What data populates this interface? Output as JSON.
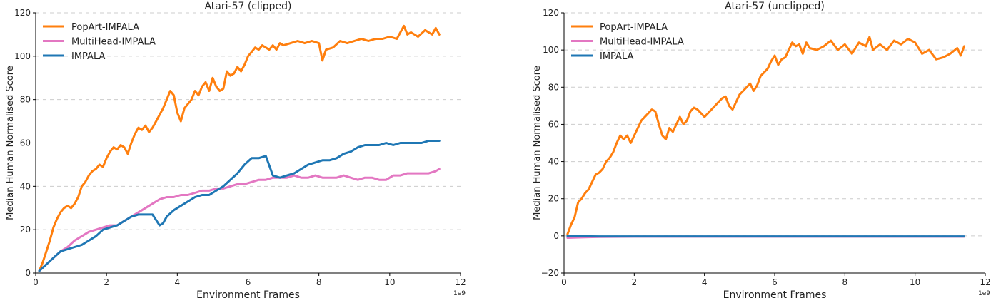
{
  "chart_data": [
    {
      "type": "line",
      "title": "Atari-57 (clipped)",
      "xlabel": "Environment Frames",
      "ylabel": "Median Human Normalised Score",
      "x_multiplier_label": "1e9",
      "xlim": [
        0,
        12
      ],
      "ylim": [
        0,
        120
      ],
      "xticks": [
        0,
        2,
        4,
        6,
        8,
        10,
        12
      ],
      "yticks": [
        0,
        20,
        40,
        60,
        80,
        100,
        120
      ],
      "grid": "horizontal-dashed",
      "legend": "top-left",
      "series": [
        {
          "name": "PopArt-IMPALA",
          "color": "#ff7f0e",
          "x": [
            0.1,
            0.2,
            0.3,
            0.4,
            0.5,
            0.6,
            0.7,
            0.8,
            0.9,
            1.0,
            1.1,
            1.2,
            1.3,
            1.4,
            1.5,
            1.6,
            1.7,
            1.8,
            1.9,
            2.0,
            2.1,
            2.2,
            2.3,
            2.4,
            2.5,
            2.6,
            2.7,
            2.8,
            2.9,
            3.0,
            3.1,
            3.2,
            3.3,
            3.4,
            3.5,
            3.6,
            3.7,
            3.8,
            3.9,
            4.0,
            4.1,
            4.2,
            4.3,
            4.4,
            4.5,
            4.6,
            4.7,
            4.8,
            4.9,
            5.0,
            5.1,
            5.2,
            5.3,
            5.4,
            5.5,
            5.6,
            5.7,
            5.8,
            5.9,
            6.0,
            6.1,
            6.2,
            6.3,
            6.4,
            6.5,
            6.6,
            6.7,
            6.8,
            6.9,
            7.0,
            7.2,
            7.4,
            7.6,
            7.8,
            8.0,
            8.1,
            8.2,
            8.4,
            8.6,
            8.8,
            9.0,
            9.2,
            9.4,
            9.6,
            9.8,
            10.0,
            10.2,
            10.4,
            10.5,
            10.6,
            10.8,
            11.0,
            11.2,
            11.3,
            11.4
          ],
          "y": [
            1,
            5,
            10,
            15,
            21,
            25,
            28,
            30,
            31,
            30,
            32,
            35,
            40,
            42,
            45,
            47,
            48,
            50,
            49,
            53,
            56,
            58,
            57,
            59,
            58,
            55,
            60,
            64,
            67,
            66,
            68,
            65,
            67,
            70,
            73,
            76,
            80,
            84,
            82,
            74,
            70,
            76,
            78,
            80,
            84,
            82,
            86,
            88,
            84,
            90,
            86,
            84,
            85,
            93,
            91,
            92,
            95,
            93,
            96,
            100,
            102,
            104,
            103,
            105,
            104,
            103,
            105,
            103,
            106,
            105,
            106,
            107,
            106,
            107,
            106,
            98,
            103,
            104,
            107,
            106,
            107,
            108,
            107,
            108,
            108,
            109,
            108,
            114,
            110,
            111,
            109,
            112,
            110,
            113,
            110
          ]
        },
        {
          "name": "MultiHead-IMPALA",
          "color": "#e377c2",
          "x": [
            0.1,
            0.3,
            0.5,
            0.7,
            0.9,
            1.1,
            1.3,
            1.5,
            1.7,
            1.9,
            2.1,
            2.3,
            2.5,
            2.7,
            2.9,
            3.1,
            3.3,
            3.5,
            3.7,
            3.9,
            4.1,
            4.3,
            4.5,
            4.7,
            4.9,
            5.1,
            5.3,
            5.5,
            5.7,
            5.9,
            6.1,
            6.3,
            6.5,
            6.7,
            6.9,
            7.1,
            7.3,
            7.5,
            7.7,
            7.9,
            8.1,
            8.3,
            8.5,
            8.7,
            8.9,
            9.1,
            9.3,
            9.5,
            9.7,
            9.9,
            10.1,
            10.3,
            10.5,
            10.7,
            10.9,
            11.1,
            11.3,
            11.4
          ],
          "y": [
            1,
            4,
            7,
            10,
            12,
            15,
            17,
            19,
            20,
            21,
            22,
            22,
            24,
            26,
            28,
            30,
            32,
            34,
            35,
            35,
            36,
            36,
            37,
            38,
            38,
            39,
            39,
            40,
            41,
            41,
            42,
            43,
            43,
            44,
            44,
            44,
            45,
            44,
            44,
            45,
            44,
            44,
            44,
            45,
            44,
            43,
            44,
            44,
            43,
            43,
            45,
            45,
            46,
            46,
            46,
            46,
            47,
            48
          ]
        },
        {
          "name": "IMPALA",
          "color": "#1f77b4",
          "x": [
            0.1,
            0.3,
            0.5,
            0.7,
            0.9,
            1.1,
            1.3,
            1.5,
            1.7,
            1.9,
            2.1,
            2.3,
            2.5,
            2.7,
            2.9,
            3.1,
            3.3,
            3.5,
            3.6,
            3.7,
            3.9,
            4.1,
            4.3,
            4.5,
            4.7,
            4.9,
            5.1,
            5.3,
            5.5,
            5.7,
            5.9,
            6.1,
            6.3,
            6.5,
            6.7,
            6.9,
            7.1,
            7.3,
            7.5,
            7.7,
            7.9,
            8.1,
            8.3,
            8.5,
            8.7,
            8.9,
            9.1,
            9.3,
            9.5,
            9.7,
            9.9,
            10.1,
            10.3,
            10.5,
            10.7,
            10.9,
            11.1,
            11.3,
            11.4
          ],
          "y": [
            1,
            4,
            7,
            10,
            11,
            12,
            13,
            15,
            17,
            20,
            21,
            22,
            24,
            26,
            27,
            27,
            27,
            22,
            23,
            26,
            29,
            31,
            33,
            35,
            36,
            36,
            38,
            40,
            43,
            46,
            50,
            53,
            53,
            54,
            45,
            44,
            45,
            46,
            48,
            50,
            51,
            52,
            52,
            53,
            55,
            56,
            58,
            59,
            59,
            59,
            60,
            59,
            60,
            60,
            60,
            60,
            61,
            61,
            61
          ]
        }
      ]
    },
    {
      "type": "line",
      "title": "Atari-57 (unclipped)",
      "xlabel": "Environment Frames",
      "ylabel": "Median Human Normalised Score",
      "x_multiplier_label": "1e9",
      "xlim": [
        0,
        12
      ],
      "ylim": [
        -20,
        120
      ],
      "xticks": [
        0,
        2,
        4,
        6,
        8,
        10,
        12
      ],
      "yticks": [
        -20,
        0,
        20,
        40,
        60,
        80,
        100,
        120
      ],
      "grid": "horizontal-dashed",
      "legend": "top-left",
      "series": [
        {
          "name": "PopArt-IMPALA",
          "color": "#ff7f0e",
          "x": [
            0.1,
            0.2,
            0.3,
            0.4,
            0.5,
            0.6,
            0.7,
            0.8,
            0.9,
            1.0,
            1.1,
            1.2,
            1.3,
            1.4,
            1.5,
            1.6,
            1.7,
            1.8,
            1.9,
            2.0,
            2.1,
            2.2,
            2.3,
            2.4,
            2.5,
            2.6,
            2.7,
            2.8,
            2.9,
            3.0,
            3.1,
            3.2,
            3.3,
            3.4,
            3.5,
            3.6,
            3.7,
            3.8,
            3.9,
            4.0,
            4.1,
            4.2,
            4.3,
            4.4,
            4.5,
            4.6,
            4.7,
            4.8,
            4.9,
            5.0,
            5.1,
            5.2,
            5.3,
            5.4,
            5.5,
            5.6,
            5.7,
            5.8,
            5.9,
            6.0,
            6.1,
            6.2,
            6.3,
            6.4,
            6.5,
            6.6,
            6.7,
            6.8,
            6.9,
            7.0,
            7.2,
            7.4,
            7.6,
            7.8,
            8.0,
            8.2,
            8.4,
            8.6,
            8.7,
            8.8,
            9.0,
            9.2,
            9.4,
            9.6,
            9.8,
            10.0,
            10.2,
            10.4,
            10.6,
            10.8,
            11.0,
            11.2,
            11.3,
            11.4
          ],
          "y": [
            1,
            6,
            10,
            18,
            20,
            23,
            25,
            29,
            33,
            34,
            36,
            40,
            42,
            45,
            50,
            54,
            52,
            54,
            50,
            54,
            58,
            62,
            64,
            66,
            68,
            67,
            60,
            54,
            52,
            58,
            56,
            60,
            64,
            60,
            62,
            67,
            69,
            68,
            66,
            64,
            66,
            68,
            70,
            72,
            74,
            75,
            70,
            68,
            72,
            76,
            78,
            80,
            82,
            78,
            81,
            86,
            88,
            90,
            94,
            97,
            92,
            95,
            96,
            100,
            104,
            102,
            103,
            98,
            104,
            101,
            100,
            102,
            105,
            100,
            103,
            98,
            104,
            102,
            107,
            100,
            103,
            100,
            105,
            103,
            106,
            104,
            98,
            100,
            95,
            96,
            98,
            101,
            97,
            102
          ]
        },
        {
          "name": "MultiHead-IMPALA",
          "color": "#e377c2",
          "x": [
            0.1,
            0.5,
            1.0,
            2.0,
            4.0,
            6.0,
            8.0,
            10.0,
            11.4
          ],
          "y": [
            -1,
            -0.8,
            -0.5,
            -0.4,
            -0.4,
            -0.4,
            -0.4,
            -0.4,
            -0.4
          ]
        },
        {
          "name": "IMPALA",
          "color": "#1f77b4",
          "x": [
            0.1,
            0.5,
            1.0,
            2.0,
            4.0,
            6.0,
            8.0,
            10.0,
            11.4
          ],
          "y": [
            0,
            -0.2,
            -0.3,
            -0.3,
            -0.3,
            -0.3,
            -0.3,
            -0.3,
            -0.3
          ]
        }
      ]
    }
  ]
}
